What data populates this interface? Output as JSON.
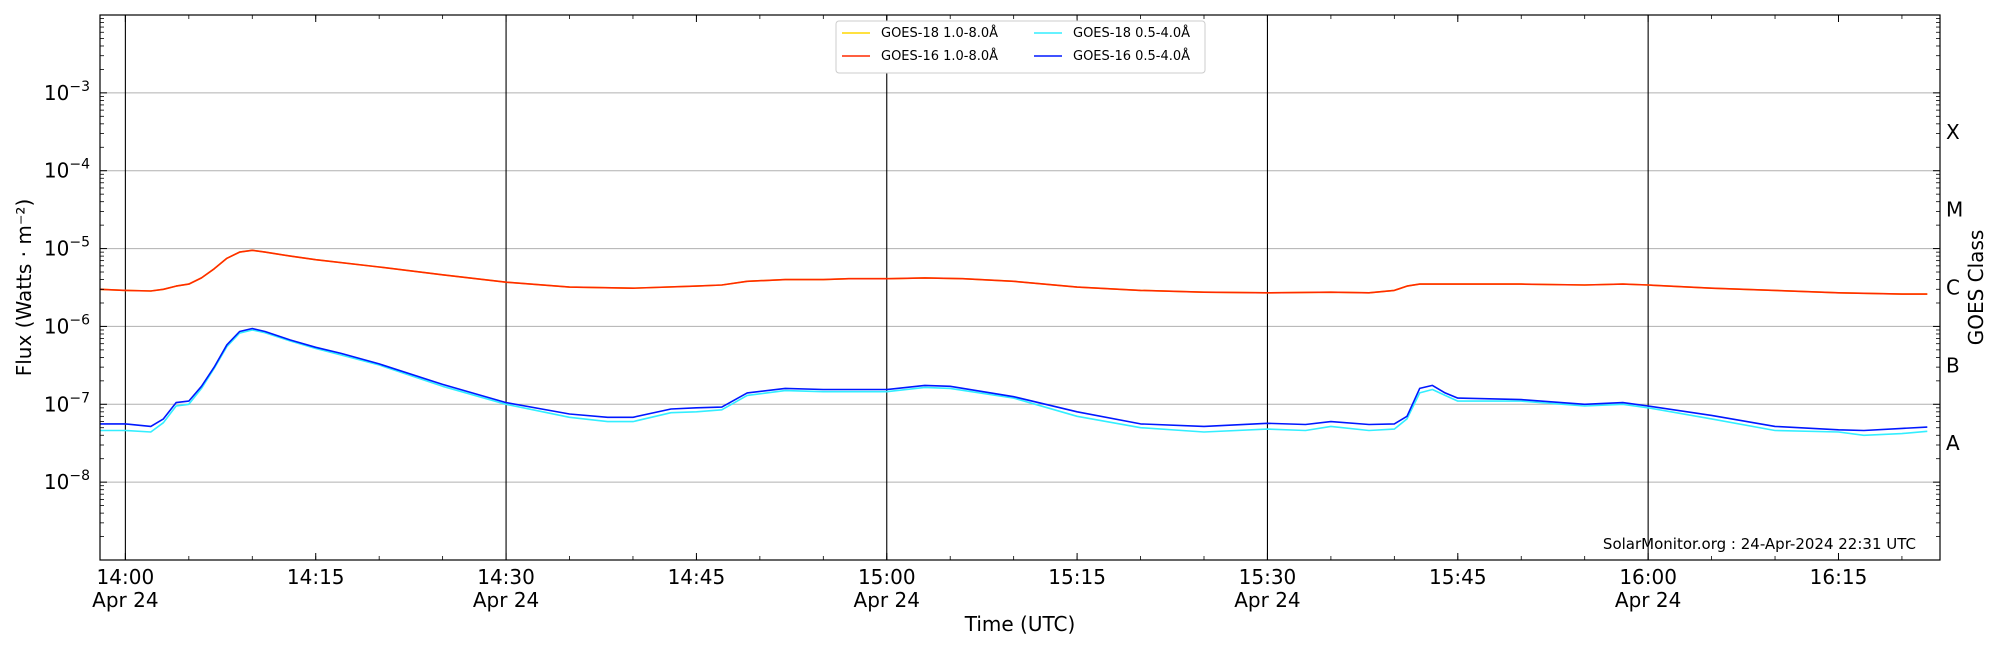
{
  "chart_data": {
    "type": "line",
    "xlabel": "Time (UTC)",
    "ylabel": "Flux (Watts · m⁻²)",
    "right_axis_label": "GOES Class",
    "credit": "SolarMonitor.org : 24-Apr-2024 22:31 UTC",
    "y_scale": "log",
    "ylim": [
      1e-09,
      0.01
    ],
    "xlim": [
      "2024-04-24T13:58",
      "2024-04-24T16:23"
    ],
    "grid": "horizontal at each decade",
    "legend_placement": "top-center",
    "x_ticks": [
      {
        "time": "14:00",
        "line1": "14:00",
        "line2": "Apr 24",
        "vline": true
      },
      {
        "time": "14:15",
        "line1": "14:15",
        "line2": "",
        "vline": false
      },
      {
        "time": "14:30",
        "line1": "14:30",
        "line2": "Apr 24",
        "vline": true
      },
      {
        "time": "14:45",
        "line1": "14:45",
        "line2": "",
        "vline": false
      },
      {
        "time": "15:00",
        "line1": "15:00",
        "line2": "Apr 24",
        "vline": true
      },
      {
        "time": "15:15",
        "line1": "15:15",
        "line2": "",
        "vline": false
      },
      {
        "time": "15:30",
        "line1": "15:30",
        "line2": "Apr 24",
        "vline": true
      },
      {
        "time": "15:45",
        "line1": "15:45",
        "line2": "",
        "vline": false
      },
      {
        "time": "16:00",
        "line1": "16:00",
        "line2": "Apr 24",
        "vline": true
      },
      {
        "time": "16:15",
        "line1": "16:15",
        "line2": "",
        "vline": false
      }
    ],
    "y_ticks": [
      {
        "value": 1e-08,
        "base": "10",
        "exp": "−8"
      },
      {
        "value": 1e-07,
        "base": "10",
        "exp": "−7"
      },
      {
        "value": 1e-06,
        "base": "10",
        "exp": "−6"
      },
      {
        "value": 1e-05,
        "base": "10",
        "exp": "−5"
      },
      {
        "value": 0.0001,
        "base": "10",
        "exp": "−4"
      },
      {
        "value": 0.001,
        "base": "10",
        "exp": "−3"
      }
    ],
    "goes_classes": [
      {
        "label": "A",
        "value": 3.16e-08
      },
      {
        "label": "B",
        "value": 3.16e-07
      },
      {
        "label": "C",
        "value": 3.16e-06
      },
      {
        "label": "M",
        "value": 3.16e-05
      },
      {
        "label": "X",
        "value": 0.000316
      }
    ],
    "legend": [
      {
        "name": "GOES-18 1.0-8.0Å",
        "color": "#ffd700"
      },
      {
        "name": "GOES-16 1.0-8.0Å",
        "color": "#ff2a00"
      },
      {
        "name": "GOES-18 0.5-4.0Å",
        "color": "#33eeff"
      },
      {
        "name": "GOES-16 0.5-4.0Å",
        "color": "#0018ff"
      }
    ],
    "series": [
      {
        "name": "GOES-18 1.0-8.0Å",
        "color": "#ffd700",
        "points": [
          [
            "13:58",
            3e-06
          ],
          [
            "14:00",
            2.9e-06
          ],
          [
            "14:02",
            2.85e-06
          ],
          [
            "14:03",
            3e-06
          ],
          [
            "14:04",
            3.3e-06
          ],
          [
            "14:05",
            3.5e-06
          ],
          [
            "14:06",
            4.2e-06
          ],
          [
            "14:07",
            5.5e-06
          ],
          [
            "14:08",
            7.5e-06
          ],
          [
            "14:09",
            9e-06
          ],
          [
            "14:10",
            9.5e-06
          ],
          [
            "14:11",
            9e-06
          ],
          [
            "14:13",
            8e-06
          ],
          [
            "14:15",
            7.2e-06
          ],
          [
            "14:20",
            5.8e-06
          ],
          [
            "14:25",
            4.6e-06
          ],
          [
            "14:30",
            3.7e-06
          ],
          [
            "14:35",
            3.2e-06
          ],
          [
            "14:40",
            3.1e-06
          ],
          [
            "14:45",
            3.3e-06
          ],
          [
            "14:47",
            3.4e-06
          ],
          [
            "14:49",
            3.8e-06
          ],
          [
            "14:52",
            4e-06
          ],
          [
            "14:55",
            4e-06
          ],
          [
            "14:57",
            4.1e-06
          ],
          [
            "15:00",
            4.1e-06
          ],
          [
            "15:03",
            4.2e-06
          ],
          [
            "15:06",
            4.1e-06
          ],
          [
            "15:10",
            3.8e-06
          ],
          [
            "15:15",
            3.2e-06
          ],
          [
            "15:20",
            2.9e-06
          ],
          [
            "15:25",
            2.75e-06
          ],
          [
            "15:30",
            2.7e-06
          ],
          [
            "15:35",
            2.75e-06
          ],
          [
            "15:38",
            2.7e-06
          ],
          [
            "15:40",
            2.9e-06
          ],
          [
            "15:41",
            3.3e-06
          ],
          [
            "15:42",
            3.5e-06
          ],
          [
            "15:45",
            3.5e-06
          ],
          [
            "15:50",
            3.5e-06
          ],
          [
            "15:55",
            3.4e-06
          ],
          [
            "15:58",
            3.5e-06
          ],
          [
            "16:00",
            3.4e-06
          ],
          [
            "16:05",
            3.1e-06
          ],
          [
            "16:10",
            2.9e-06
          ],
          [
            "16:15",
            2.7e-06
          ],
          [
            "16:20",
            2.6e-06
          ],
          [
            "16:22",
            2.6e-06
          ]
        ]
      },
      {
        "name": "GOES-16 1.0-8.0Å",
        "color": "#ff2a00",
        "points": [
          [
            "13:58",
            3e-06
          ],
          [
            "14:00",
            2.9e-06
          ],
          [
            "14:02",
            2.85e-06
          ],
          [
            "14:03",
            3e-06
          ],
          [
            "14:04",
            3.3e-06
          ],
          [
            "14:05",
            3.5e-06
          ],
          [
            "14:06",
            4.2e-06
          ],
          [
            "14:07",
            5.5e-06
          ],
          [
            "14:08",
            7.5e-06
          ],
          [
            "14:09",
            9e-06
          ],
          [
            "14:10",
            9.5e-06
          ],
          [
            "14:11",
            9e-06
          ],
          [
            "14:13",
            8e-06
          ],
          [
            "14:15",
            7.2e-06
          ],
          [
            "14:20",
            5.8e-06
          ],
          [
            "14:25",
            4.6e-06
          ],
          [
            "14:30",
            3.7e-06
          ],
          [
            "14:35",
            3.2e-06
          ],
          [
            "14:40",
            3.1e-06
          ],
          [
            "14:45",
            3.3e-06
          ],
          [
            "14:47",
            3.4e-06
          ],
          [
            "14:49",
            3.8e-06
          ],
          [
            "14:52",
            4e-06
          ],
          [
            "14:55",
            4e-06
          ],
          [
            "14:57",
            4.1e-06
          ],
          [
            "15:00",
            4.1e-06
          ],
          [
            "15:03",
            4.2e-06
          ],
          [
            "15:06",
            4.1e-06
          ],
          [
            "15:10",
            3.8e-06
          ],
          [
            "15:15",
            3.2e-06
          ],
          [
            "15:20",
            2.9e-06
          ],
          [
            "15:25",
            2.75e-06
          ],
          [
            "15:30",
            2.7e-06
          ],
          [
            "15:35",
            2.75e-06
          ],
          [
            "15:38",
            2.7e-06
          ],
          [
            "15:40",
            2.9e-06
          ],
          [
            "15:41",
            3.3e-06
          ],
          [
            "15:42",
            3.5e-06
          ],
          [
            "15:45",
            3.5e-06
          ],
          [
            "15:50",
            3.5e-06
          ],
          [
            "15:55",
            3.4e-06
          ],
          [
            "15:58",
            3.5e-06
          ],
          [
            "16:00",
            3.4e-06
          ],
          [
            "16:05",
            3.1e-06
          ],
          [
            "16:10",
            2.9e-06
          ],
          [
            "16:15",
            2.7e-06
          ],
          [
            "16:20",
            2.6e-06
          ],
          [
            "16:22",
            2.6e-06
          ]
        ]
      },
      {
        "name": "GOES-18 0.5-4.0Å",
        "color": "#33eeff",
        "points": [
          [
            "13:58",
            4.6e-08
          ],
          [
            "14:00",
            4.6e-08
          ],
          [
            "14:02",
            4.4e-08
          ],
          [
            "14:03",
            5.8e-08
          ],
          [
            "14:04",
            9.5e-08
          ],
          [
            "14:05",
            1e-07
          ],
          [
            "14:06",
            1.6e-07
          ],
          [
            "14:07",
            2.9e-07
          ],
          [
            "14:08",
            5.5e-07
          ],
          [
            "14:09",
            8.2e-07
          ],
          [
            "14:10",
            9e-07
          ],
          [
            "14:11",
            8.3e-07
          ],
          [
            "14:13",
            6.5e-07
          ],
          [
            "14:15",
            5.2e-07
          ],
          [
            "14:17",
            4.3e-07
          ],
          [
            "14:20",
            3.2e-07
          ],
          [
            "14:25",
            1.7e-07
          ],
          [
            "14:30",
            1e-07
          ],
          [
            "14:35",
            6.8e-08
          ],
          [
            "14:38",
            6e-08
          ],
          [
            "14:40",
            6e-08
          ],
          [
            "14:43",
            7.8e-08
          ],
          [
            "14:45",
            8e-08
          ],
          [
            "14:47",
            8.5e-08
          ],
          [
            "14:49",
            1.3e-07
          ],
          [
            "14:52",
            1.5e-07
          ],
          [
            "14:55",
            1.45e-07
          ],
          [
            "15:00",
            1.45e-07
          ],
          [
            "15:03",
            1.65e-07
          ],
          [
            "15:05",
            1.6e-07
          ],
          [
            "15:10",
            1.2e-07
          ],
          [
            "15:15",
            7e-08
          ],
          [
            "15:20",
            5e-08
          ],
          [
            "15:25",
            4.4e-08
          ],
          [
            "15:30",
            4.8e-08
          ],
          [
            "15:33",
            4.6e-08
          ],
          [
            "15:35",
            5.2e-08
          ],
          [
            "15:38",
            4.6e-08
          ],
          [
            "15:40",
            4.8e-08
          ],
          [
            "15:41",
            6.5e-08
          ],
          [
            "15:42",
            1.4e-07
          ],
          [
            "15:43",
            1.55e-07
          ],
          [
            "15:44",
            1.3e-07
          ],
          [
            "15:45",
            1.1e-07
          ],
          [
            "15:50",
            1.1e-07
          ],
          [
            "15:55",
            9.5e-08
          ],
          [
            "15:58",
            1e-07
          ],
          [
            "16:00",
            9e-08
          ],
          [
            "16:05",
            6.5e-08
          ],
          [
            "16:10",
            4.6e-08
          ],
          [
            "16:15",
            4.4e-08
          ],
          [
            "16:17",
            4e-08
          ],
          [
            "16:20",
            4.2e-08
          ],
          [
            "16:22",
            4.5e-08
          ]
        ]
      },
      {
        "name": "GOES-16 0.5-4.0Å",
        "color": "#0018ff",
        "points": [
          [
            "13:58",
            5.6e-08
          ],
          [
            "14:00",
            5.6e-08
          ],
          [
            "14:02",
            5.2e-08
          ],
          [
            "14:03",
            6.5e-08
          ],
          [
            "14:04",
            1.05e-07
          ],
          [
            "14:05",
            1.1e-07
          ],
          [
            "14:06",
            1.7e-07
          ],
          [
            "14:07",
            3e-07
          ],
          [
            "14:08",
            5.8e-07
          ],
          [
            "14:09",
            8.6e-07
          ],
          [
            "14:10",
            9.4e-07
          ],
          [
            "14:11",
            8.6e-07
          ],
          [
            "14:13",
            6.7e-07
          ],
          [
            "14:15",
            5.4e-07
          ],
          [
            "14:17",
            4.5e-07
          ],
          [
            "14:20",
            3.3e-07
          ],
          [
            "14:25",
            1.8e-07
          ],
          [
            "14:30",
            1.05e-07
          ],
          [
            "14:35",
            7.5e-08
          ],
          [
            "14:38",
            6.8e-08
          ],
          [
            "14:40",
            6.8e-08
          ],
          [
            "14:43",
            8.7e-08
          ],
          [
            "14:45",
            9e-08
          ],
          [
            "14:47",
            9.2e-08
          ],
          [
            "14:49",
            1.4e-07
          ],
          [
            "14:52",
            1.6e-07
          ],
          [
            "14:55",
            1.55e-07
          ],
          [
            "15:00",
            1.55e-07
          ],
          [
            "15:03",
            1.75e-07
          ],
          [
            "15:05",
            1.7e-07
          ],
          [
            "15:10",
            1.25e-07
          ],
          [
            "15:15",
            8e-08
          ],
          [
            "15:20",
            5.6e-08
          ],
          [
            "15:25",
            5.2e-08
          ],
          [
            "15:30",
            5.7e-08
          ],
          [
            "15:33",
            5.5e-08
          ],
          [
            "15:35",
            6e-08
          ],
          [
            "15:38",
            5.5e-08
          ],
          [
            "15:40",
            5.6e-08
          ],
          [
            "15:41",
            7e-08
          ],
          [
            "15:42",
            1.6e-07
          ],
          [
            "15:43",
            1.75e-07
          ],
          [
            "15:44",
            1.4e-07
          ],
          [
            "15:45",
            1.2e-07
          ],
          [
            "15:50",
            1.15e-07
          ],
          [
            "15:55",
            1e-07
          ],
          [
            "15:58",
            1.05e-07
          ],
          [
            "16:00",
            9.5e-08
          ],
          [
            "16:05",
            7.2e-08
          ],
          [
            "16:10",
            5.2e-08
          ],
          [
            "16:15",
            4.7e-08
          ],
          [
            "16:17",
            4.6e-08
          ],
          [
            "16:20",
            4.9e-08
          ],
          [
            "16:22",
            5.1e-08
          ]
        ]
      }
    ]
  }
}
